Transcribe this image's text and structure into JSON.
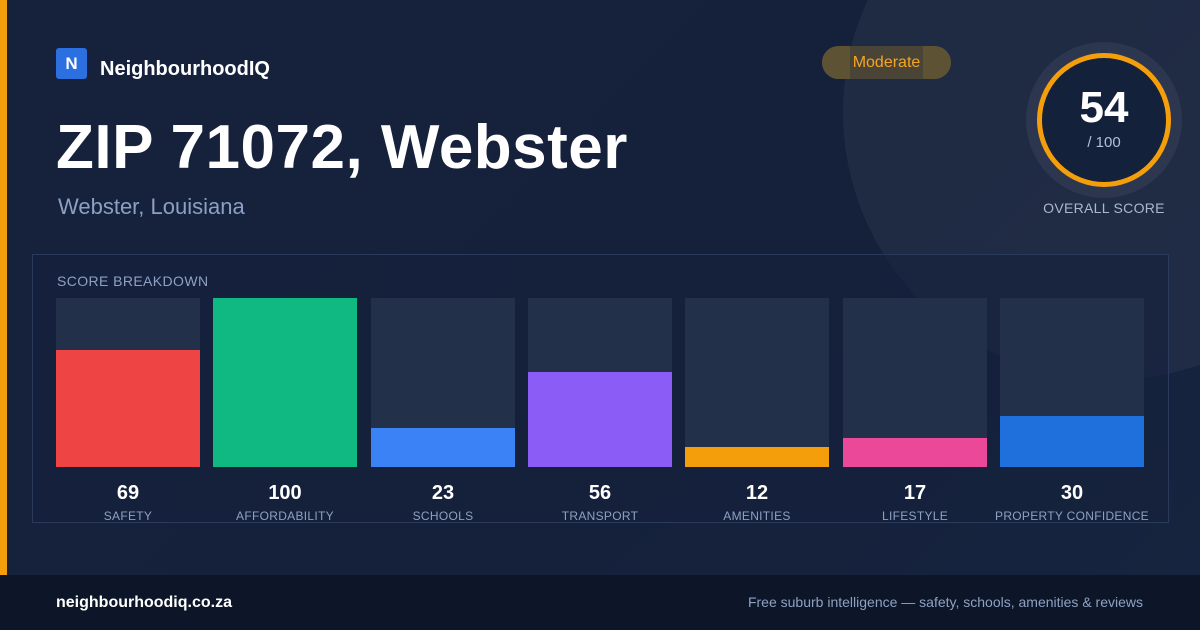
{
  "brand": {
    "logo_letter": "N",
    "name": "NeighbourhoodIQ"
  },
  "title": "ZIP 71072, Webster",
  "subtitle": "Webster, Louisiana",
  "badge": "Moderate",
  "overall": {
    "value": "54",
    "max": "/ 100",
    "label": "OVERALL SCORE"
  },
  "breakdown": {
    "title": "SCORE BREAKDOWN",
    "items": [
      {
        "value": "69",
        "score": 69,
        "label": "SAFETY",
        "color": "#ef4444"
      },
      {
        "value": "100",
        "score": 100,
        "label": "AFFORDABILITY",
        "color": "#10b981"
      },
      {
        "value": "23",
        "score": 23,
        "label": "SCHOOLS",
        "color": "#3b82f6"
      },
      {
        "value": "56",
        "score": 56,
        "label": "TRANSPORT",
        "color": "#8b5cf6"
      },
      {
        "value": "12",
        "score": 12,
        "label": "AMENITIES",
        "color": "#f59e0b"
      },
      {
        "value": "17",
        "score": 17,
        "label": "LIFESTYLE",
        "color": "#ec4899"
      },
      {
        "value": "30",
        "score": 30,
        "label": "PROPERTY CONFIDENCE",
        "color": "#1f6fdc"
      }
    ]
  },
  "colors": {
    "accent": "#f59e0b",
    "background": "#14213a",
    "footer": "#0d1628"
  },
  "footer": {
    "domain": "neighbourhoodiq.co.za",
    "tagline": "Free suburb intelligence — safety, schools, amenities & reviews"
  }
}
